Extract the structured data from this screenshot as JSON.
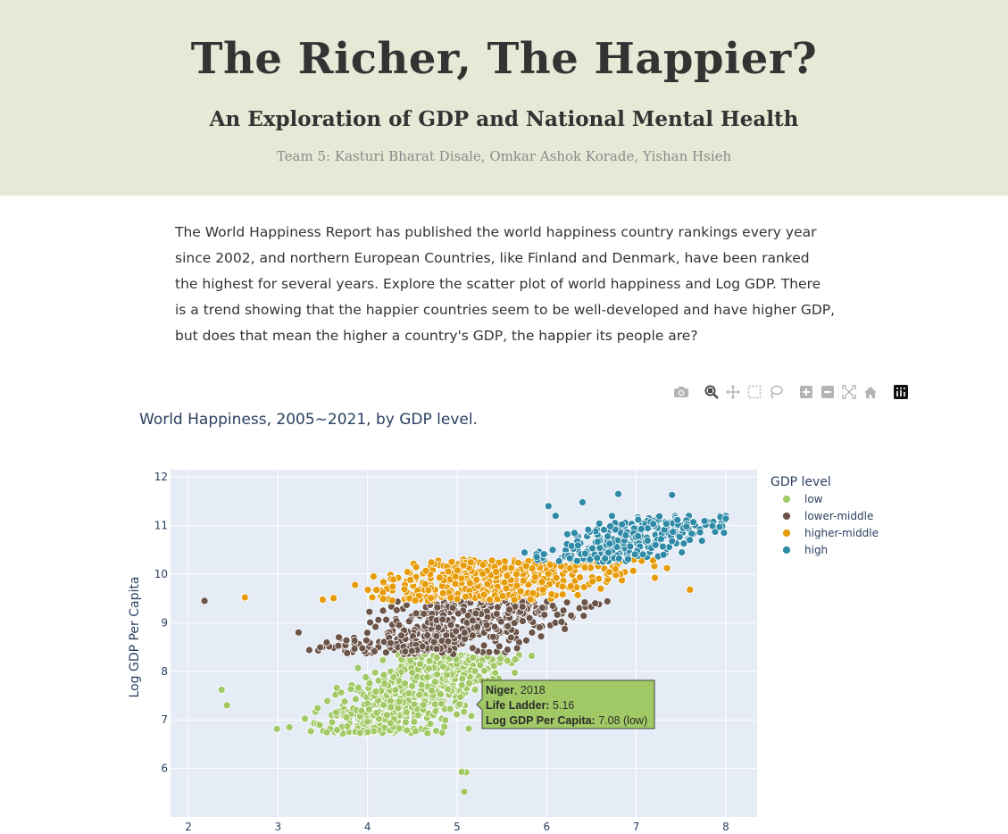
{
  "header": {
    "title": "The Richer, The Happier?",
    "subtitle": "An Exploration of GDP and National Mental Health",
    "team": "Team 5: Kasturi Bharat Disale, Omkar Ashok Korade, Yishan Hsieh"
  },
  "intro": "The World Happiness Report has published the world happiness country rankings every year since 2002, and northern European Countries, like Finland and Denmark, have been ranked the highest for several years. Explore the scatter plot of world happiness and Log GDP. There is a trend showing that the happier countries seem to be well-developed and have higher GDP, but does that mean the higher a country's GDP, the happier its people are?",
  "modebar": {
    "icons": [
      "camera-icon",
      "zoom-icon",
      "pan-icon",
      "box-select-icon",
      "lasso-icon",
      "zoom-in-icon",
      "zoom-out-icon",
      "autoscale-icon",
      "reset-axes-icon",
      "plotly-logo-icon"
    ]
  },
  "chart_data": {
    "type": "scatter",
    "title": "World Happiness, 2005~2021, by GDP level.",
    "xlabel": "",
    "ylabel": "Log GDP Per Capita",
    "xlim": [
      1.8,
      8.35
    ],
    "ylim": [
      5.0,
      12.15
    ],
    "xticks": [
      2,
      3,
      4,
      5,
      6,
      7,
      8
    ],
    "yticks": [
      6,
      7,
      8,
      9,
      10,
      11,
      12
    ],
    "grid": true,
    "legend": {
      "title": "GDP level",
      "placement": "top-right"
    },
    "series": [
      {
        "name": "low",
        "color": "#a1c965"
      },
      {
        "name": "lower-middle",
        "color": "#6b5449"
      },
      {
        "name": "higher-middle",
        "color": "#e79b06"
      },
      {
        "name": "high",
        "color": "#2e8aa6"
      }
    ],
    "clusters": [
      {
        "series": 0,
        "count": 520,
        "x_center": 4.5,
        "x_spread": 0.55,
        "x_range": [
          2.3,
          6.3
        ],
        "y_range": [
          6.7,
          8.35
        ],
        "seed": 11
      },
      {
        "series": 1,
        "count": 440,
        "x_center": 5.0,
        "x_spread": 0.75,
        "x_range": [
          3.3,
          6.9
        ],
        "y_range": [
          8.35,
          9.45
        ],
        "seed": 23
      },
      {
        "series": 2,
        "count": 430,
        "x_center": 5.4,
        "x_spread": 0.9,
        "x_range": [
          3.5,
          7.7
        ],
        "y_range": [
          9.45,
          10.3
        ],
        "seed": 37
      },
      {
        "series": 3,
        "count": 300,
        "x_center": 7.0,
        "x_spread": 0.55,
        "x_range": [
          5.1,
          8.0
        ],
        "y_range": [
          10.25,
          11.2
        ],
        "seed": 53
      }
    ],
    "points": [
      {
        "series": 0,
        "x": 5.1,
        "y": 5.92
      },
      {
        "series": 0,
        "x": 5.05,
        "y": 5.93
      },
      {
        "series": 0,
        "x": 5.08,
        "y": 5.52
      },
      {
        "series": 0,
        "x": 2.37,
        "y": 7.62
      },
      {
        "series": 0,
        "x": 2.43,
        "y": 7.3
      },
      {
        "series": 1,
        "x": 2.18,
        "y": 9.45
      },
      {
        "series": 1,
        "x": 3.23,
        "y": 8.8
      },
      {
        "series": 2,
        "x": 2.63,
        "y": 9.52
      },
      {
        "series": 2,
        "x": 7.6,
        "y": 9.68
      },
      {
        "series": 3,
        "x": 6.02,
        "y": 11.4
      },
      {
        "series": 3,
        "x": 6.4,
        "y": 11.48
      },
      {
        "series": 3,
        "x": 6.8,
        "y": 11.65
      },
      {
        "series": 3,
        "x": 7.4,
        "y": 11.63
      },
      {
        "series": 3,
        "x": 7.98,
        "y": 10.85
      },
      {
        "series": 3,
        "x": 6.1,
        "y": 11.2
      },
      {
        "series": 0,
        "x": 5.16,
        "y": 7.08
      }
    ],
    "hover": {
      "country": "Niger",
      "year": ", 2018",
      "life_label": "Life Ladder:",
      "life_value": "5.16",
      "gdp_label": "Log GDP Per Capita:",
      "gdp_value": "7.08 (low)",
      "x": 5.16,
      "y": 7.08
    }
  }
}
